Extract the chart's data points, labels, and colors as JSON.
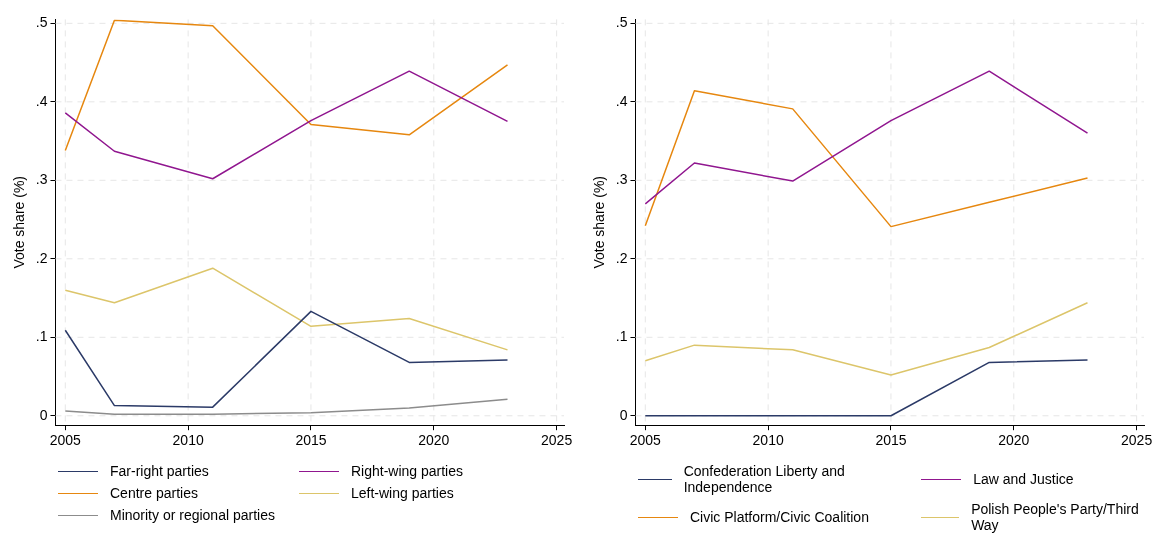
{
  "chart_data": [
    {
      "type": "line",
      "x": [
        2005,
        2007,
        2011,
        2015,
        2019,
        2023
      ],
      "ylabel": "Vote share (%)",
      "xlim": [
        2004.6,
        2025.3
      ],
      "xticks": [
        2005,
        2010,
        2015,
        2020,
        2025
      ],
      "ylim": [
        -0.012,
        0.505
      ],
      "yticks": [
        {
          "value": 0,
          "label": "0"
        },
        {
          "value": 0.1,
          "label": ".1"
        },
        {
          "value": 0.2,
          "label": ".2"
        },
        {
          "value": 0.3,
          "label": ".3"
        },
        {
          "value": 0.4,
          "label": ".4"
        },
        {
          "value": 0.5,
          "label": ".5"
        }
      ],
      "grid": true,
      "legend": "bottom",
      "marker": "none",
      "line_style": "solid",
      "series": [
        {
          "name": "Far-right parties",
          "color": "#2b3a67",
          "values": [
            0.109,
            0.013,
            0.011,
            0.133,
            0.068,
            0.071
          ]
        },
        {
          "name": "Right-wing parties",
          "color": "#90168f",
          "values": [
            0.386,
            0.337,
            0.302,
            0.376,
            0.439,
            0.375
          ]
        },
        {
          "name": "Centre parties",
          "color": "#e6870f",
          "values": [
            0.338,
            0.504,
            0.497,
            0.371,
            0.358,
            0.447
          ]
        },
        {
          "name": "Left-wing parties",
          "color": "#dcc56a",
          "values": [
            0.16,
            0.144,
            0.188,
            0.114,
            0.124,
            0.084
          ]
        },
        {
          "name": "Minority or regional parties",
          "color": "#8c8c8c",
          "values": [
            0.006,
            0.002,
            0.002,
            0.004,
            0.01,
            0.021
          ]
        }
      ]
    },
    {
      "type": "line",
      "x": [
        2005,
        2007,
        2011,
        2015,
        2019,
        2023
      ],
      "ylabel": "Vote share (%)",
      "xlim": [
        2004.6,
        2025.3
      ],
      "xticks": [
        2005,
        2010,
        2015,
        2020,
        2025
      ],
      "ylim": [
        -0.012,
        0.505
      ],
      "yticks": [
        {
          "value": 0,
          "label": "0"
        },
        {
          "value": 0.1,
          "label": ".1"
        },
        {
          "value": 0.2,
          "label": ".2"
        },
        {
          "value": 0.3,
          "label": ".3"
        },
        {
          "value": 0.4,
          "label": ".4"
        },
        {
          "value": 0.5,
          "label": ".5"
        }
      ],
      "grid": true,
      "legend": "bottom",
      "marker": "none",
      "line_style": "solid",
      "series": [
        {
          "name": "Confederation Liberty and Independence",
          "color": "#2b3a67",
          "values": [
            0,
            0,
            0,
            0,
            0.068,
            0.071
          ]
        },
        {
          "name": "Law and Justice",
          "color": "#90168f",
          "values": [
            0.27,
            0.322,
            0.299,
            0.376,
            0.439,
            0.36
          ]
        },
        {
          "name": "Civic Platform/Civic Coalition",
          "color": "#e6870f",
          "values": [
            0.242,
            0.414,
            0.391,
            0.241,
            0.272,
            0.303
          ]
        },
        {
          "name": "Polish People's Party/Third Way",
          "color": "#dcc56a",
          "values": [
            0.07,
            0.09,
            0.084,
            0.052,
            0.087,
            0.144
          ]
        }
      ]
    }
  ]
}
